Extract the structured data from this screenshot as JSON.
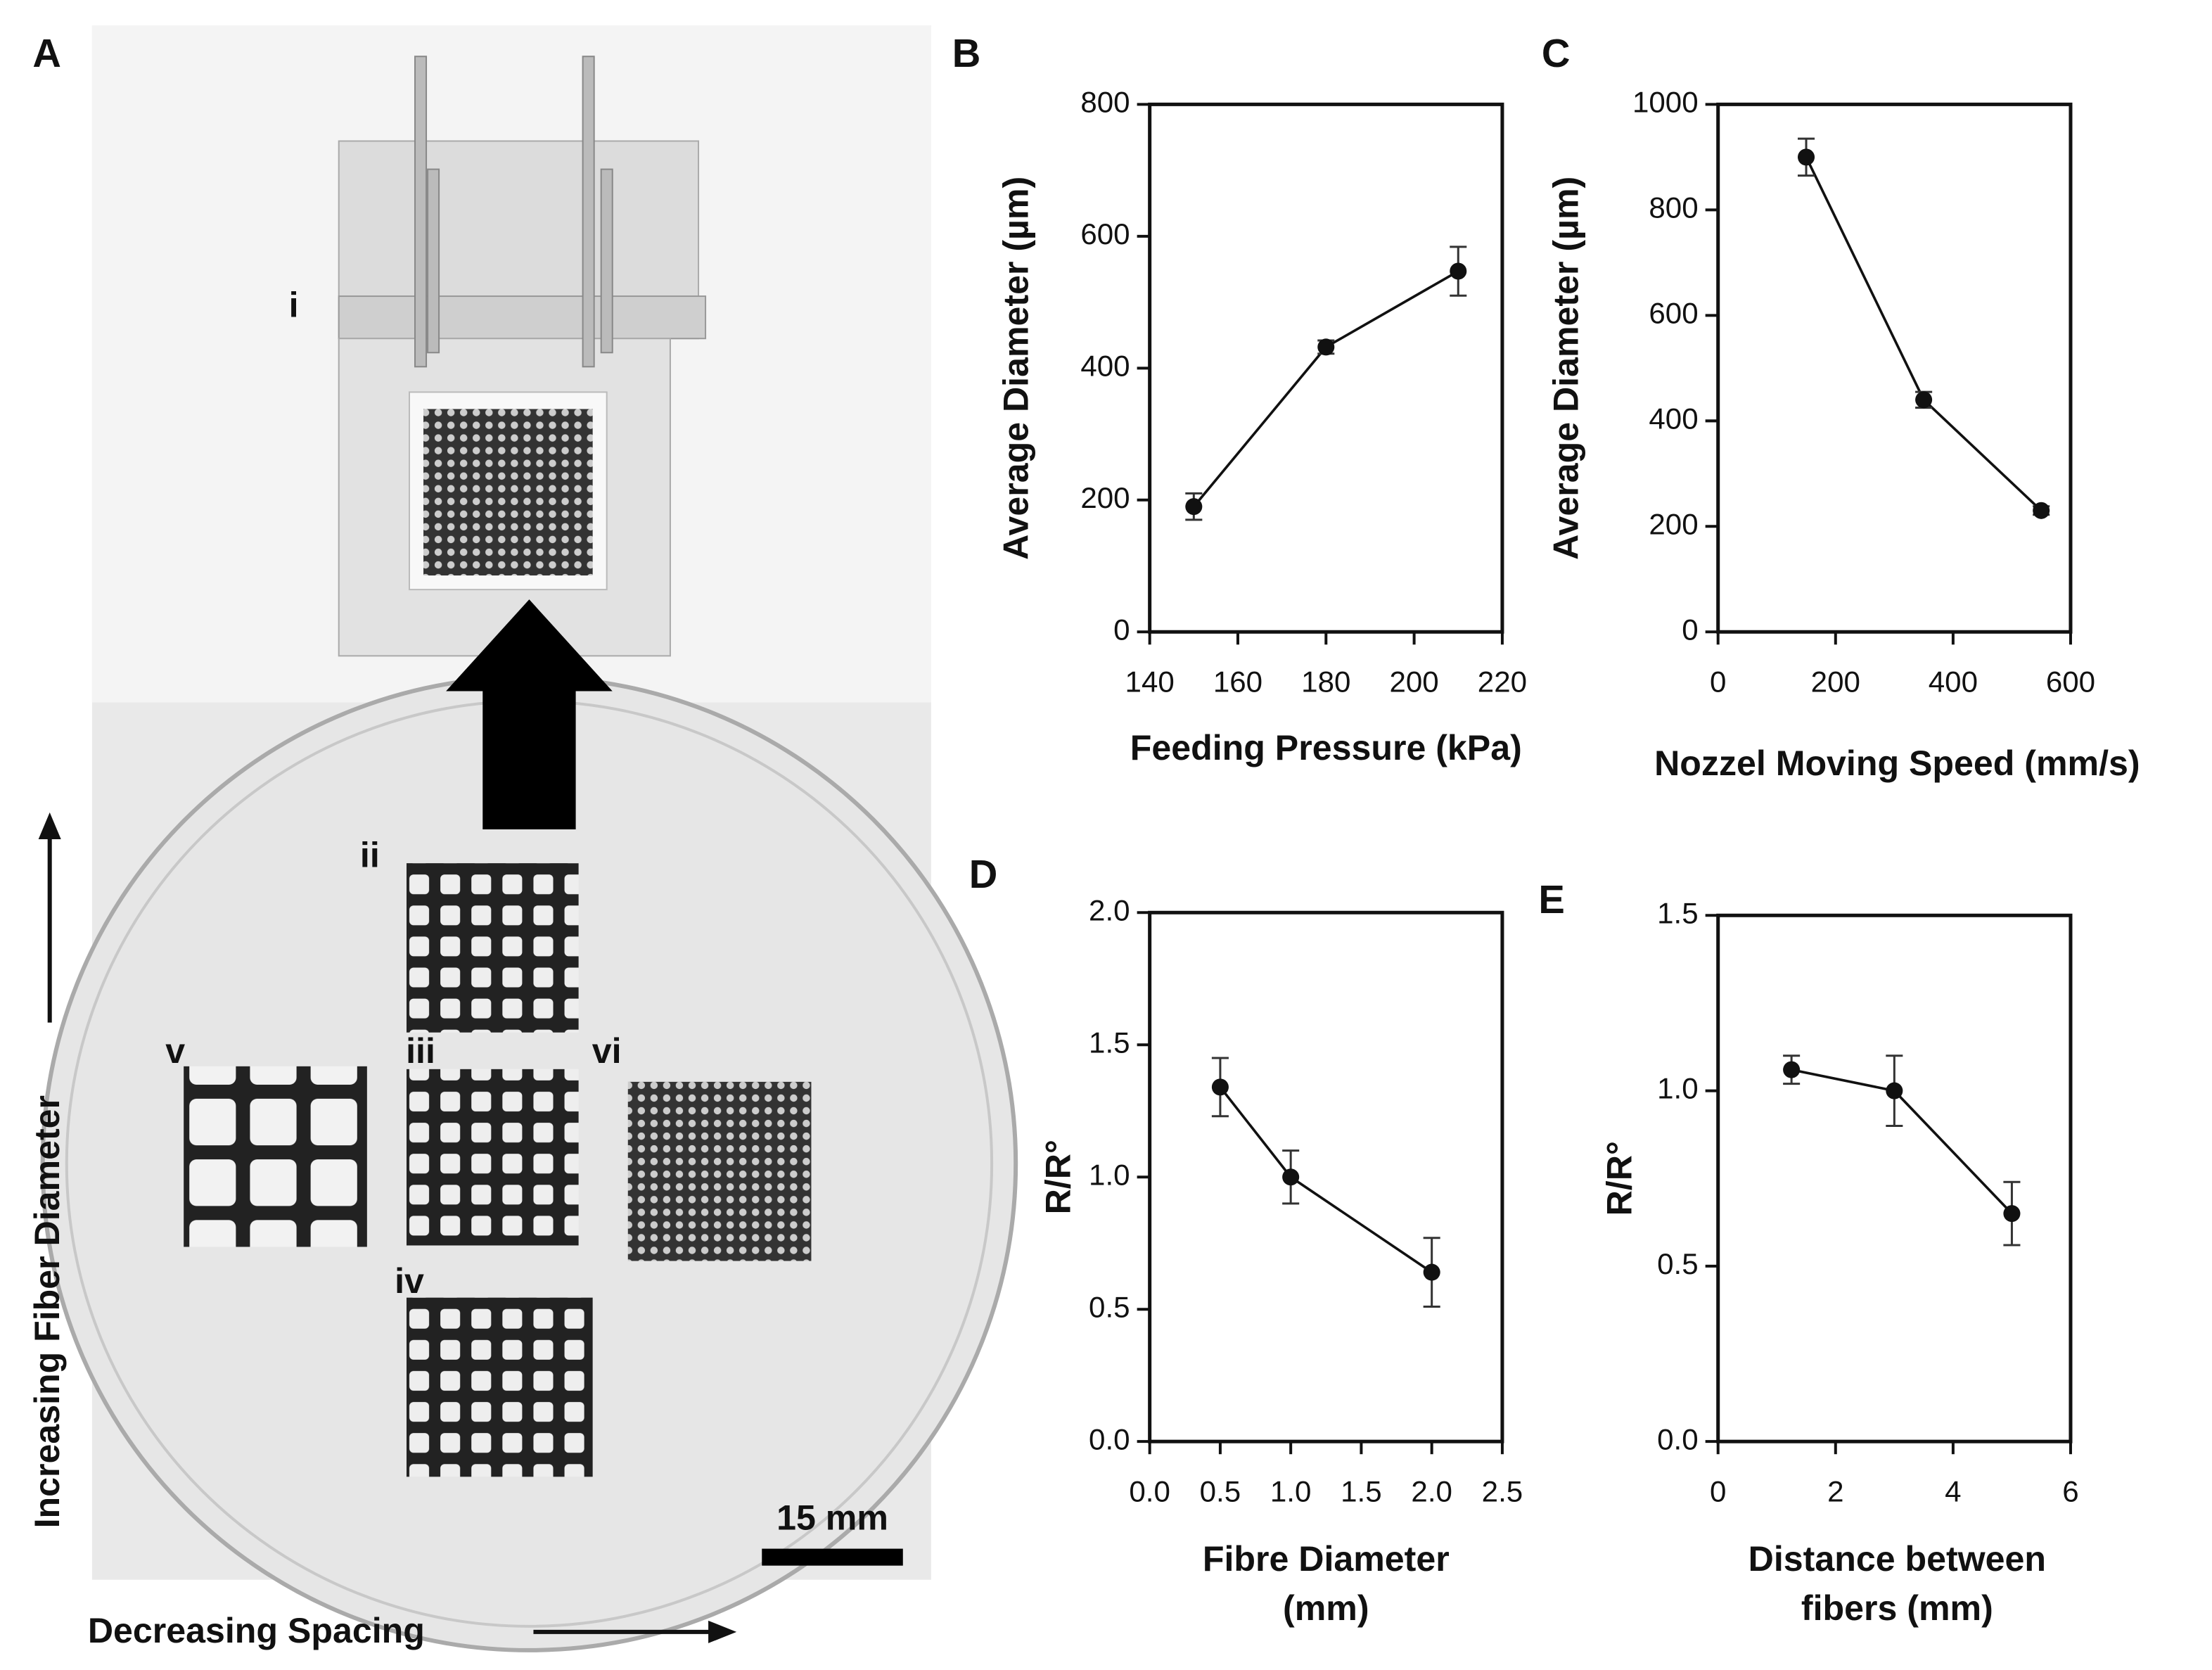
{
  "photo": {
    "label": "A",
    "sample_labels": [
      "i",
      "ii",
      "iii",
      "iv",
      "v",
      "vi"
    ],
    "scale_bar": "15 mm",
    "y_arrow_label": "Increasing Fiber Diameter",
    "x_arrow_label": "Decreasing Spacing"
  },
  "chart_data": [
    {
      "type": "line",
      "panel": "B",
      "xlabel": [
        "Feeding Pressure (kPa)"
      ],
      "ylabel": "Average Diameter (µm)",
      "x": [
        150,
        180,
        210
      ],
      "series": [
        {
          "color": "#111111",
          "values": [
            190,
            432,
            547
          ],
          "errors": [
            20,
            10,
            37
          ]
        }
      ],
      "xlim": [
        140,
        220
      ],
      "xticks": [
        140,
        160,
        180,
        200,
        220
      ],
      "ylim": [
        0,
        800
      ],
      "yticks": [
        0,
        200,
        400,
        600,
        800
      ]
    },
    {
      "type": "line",
      "panel": "C",
      "xlabel": [
        "Nozzel Moving Speed (mm/s)"
      ],
      "ylabel": "Average Diameter (µm)",
      "x": [
        150,
        350,
        550
      ],
      "series": [
        {
          "color": "#111111",
          "values": [
            900,
            440,
            230
          ],
          "errors": [
            35,
            15,
            8
          ]
        }
      ],
      "xlim": [
        0,
        600
      ],
      "xticks": [
        0,
        200,
        400,
        600
      ],
      "ylim": [
        0,
        1000
      ],
      "yticks": [
        0,
        200,
        400,
        600,
        800,
        1000
      ]
    },
    {
      "type": "line",
      "panel": "D",
      "xlabel": [
        "Fibre Diameter",
        "(mm)"
      ],
      "ylabel": "R/R°",
      "x": [
        0.5,
        1.0,
        2.0
      ],
      "series": [
        {
          "color": "#111111",
          "values": [
            1.34,
            1.0,
            0.64
          ],
          "errors": [
            0.11,
            0.1,
            0.13
          ]
        }
      ],
      "xlim": [
        0,
        2.5
      ],
      "xticks": [
        {
          "value": 0,
          "label": "0.0"
        },
        0.5,
        {
          "value": 1,
          "label": "1.0"
        },
        1.5,
        {
          "value": 2,
          "label": "2.0"
        },
        2.5
      ],
      "ylim": [
        0,
        2
      ],
      "yticks": [
        {
          "value": 0,
          "label": "0.0"
        },
        0.5,
        {
          "value": 1,
          "label": "1.0"
        },
        1.5,
        {
          "value": 2,
          "label": "2.0"
        }
      ]
    },
    {
      "type": "line",
      "panel": "E",
      "xlabel": [
        "Distance between",
        "fibers (mm)"
      ],
      "ylabel": "R/R°",
      "x": [
        1.25,
        3,
        5
      ],
      "series": [
        {
          "color": "#111111",
          "values": [
            1.06,
            1.0,
            0.65
          ],
          "errors": [
            0.04,
            0.1,
            0.09
          ]
        }
      ],
      "xlim": [
        0,
        6
      ],
      "xticks": [
        0,
        2,
        4,
        6
      ],
      "ylim": [
        0,
        1.5
      ],
      "yticks": [
        {
          "value": 0,
          "label": "0.0"
        },
        0.5,
        {
          "value": 1,
          "label": "1.0"
        },
        1.5
      ]
    }
  ]
}
